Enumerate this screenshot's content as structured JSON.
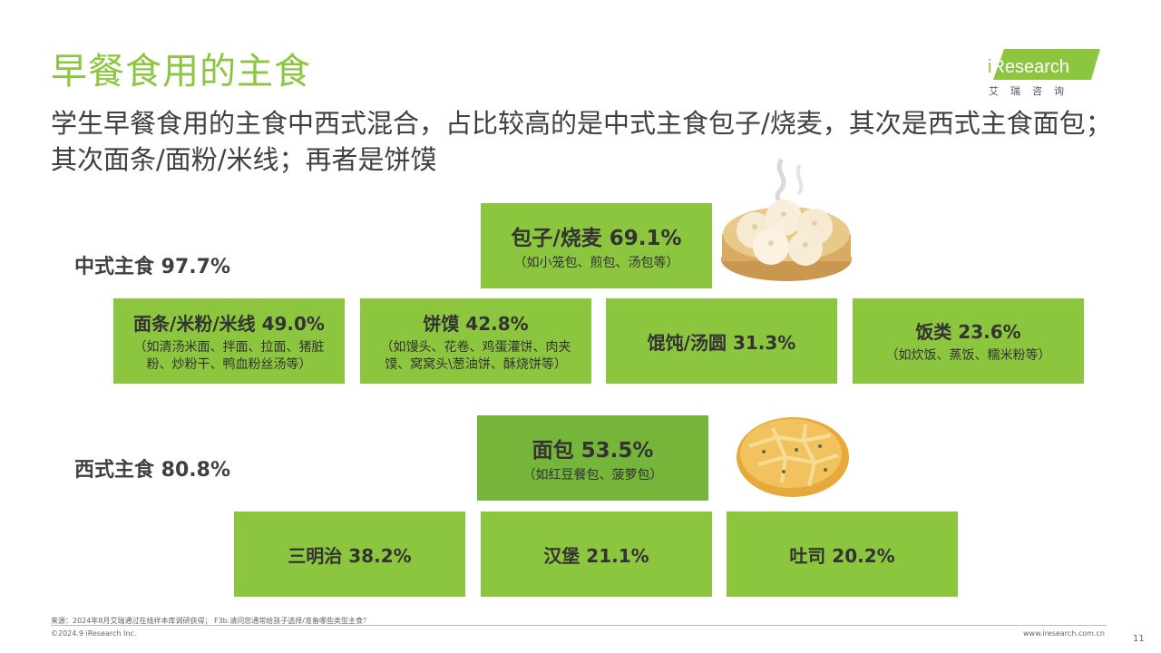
{
  "title": "早餐食用的主食",
  "subtitle": "学生早餐食用的主食中西式混合，占比较高的是中式主食包子/烧麦，其次是西式主食面包；其次面条/面粉/米线；再者是饼馍",
  "logo": {
    "text": "iResearch",
    "cn": "艾瑞咨询"
  },
  "chinese": {
    "label": "中式主食 97.7%",
    "top": {
      "name": "包子/烧麦  69.1%",
      "note": "（如小笼包、煎包、汤包等）"
    },
    "items": [
      {
        "name": "面条/米粉/米线  49.0%",
        "note": "（如清汤米面、拌面、拉面、猪脏粉、炒粉干、鸭血粉丝汤等）"
      },
      {
        "name": "饼馍  42.8%",
        "note": "（如馒头、花卷、鸡蛋灌饼、肉夹馍、窝窝头\\葱油饼、酥烧饼等）"
      },
      {
        "name": "馄饨/汤圆 31.3%",
        "note": ""
      },
      {
        "name": "饭类 23.6%",
        "note": "（如炊饭、蒸饭、糯米粉等）"
      }
    ]
  },
  "western": {
    "label": "西式主食 80.8%",
    "top": {
      "name": "面包 53.5%",
      "note": "（如红豆餐包、菠萝包）"
    },
    "items": [
      {
        "name": "三明治  38.2%"
      },
      {
        "name": "汉堡 21.1%"
      },
      {
        "name": "吐司 20.2%"
      }
    ]
  },
  "footer": {
    "source": "来源：2024年8月艾瑞通过在线样本库调研获得； F3b.请问您通常给孩子选择/准备哪些类型主食？",
    "copyright": "©2024.9 iResearch Inc.",
    "url": "www.iresearch.com.cn",
    "page": "11"
  },
  "colors": {
    "accent": "#8cc63f",
    "box": "#8cc63f",
    "box_dark": "#75b53a"
  }
}
